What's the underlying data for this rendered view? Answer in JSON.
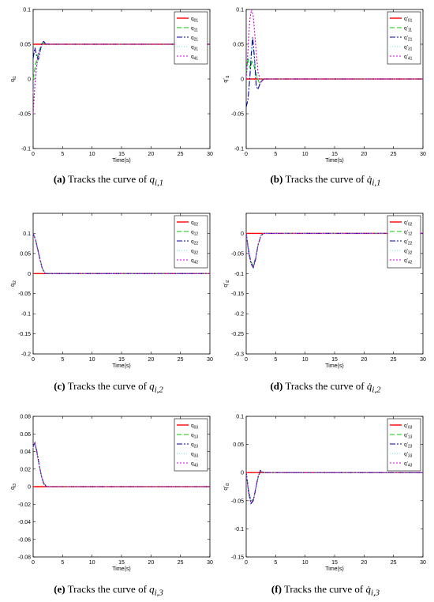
{
  "figure": {
    "captions": [
      {
        "tag": "(a)",
        "text": "Tracks the curve of",
        "var": "q",
        "sub": "i,1"
      },
      {
        "tag": "(b)",
        "text": "Tracks the curve of",
        "var": "q̇",
        "sub": "i,1"
      },
      {
        "tag": "(c)",
        "text": "Tracks the curve of",
        "var": "q",
        "sub": "i,2"
      },
      {
        "tag": "(d)",
        "text": "Tracks the curve of",
        "var": "q̇",
        "sub": "i,2"
      },
      {
        "tag": "(e)",
        "text": "Tracks the curve of",
        "var": "q",
        "sub": "i,3"
      },
      {
        "tag": "(f)",
        "text": "Tracks the curve of",
        "var": "q̇",
        "sub": "i,3"
      }
    ]
  },
  "styles": {
    "colors": [
      "#ff0000",
      "#00cc00",
      "#0000a0",
      "#66e0e0",
      "#cc00cc"
    ],
    "dashes": [
      "",
      "6,3",
      "7,2,2,2",
      "1,2",
      "2,2"
    ]
  },
  "chart_data": [
    {
      "type": "line",
      "ylabel": "q",
      "ylabel_sub": "i1",
      "xlabel": "Time(s)",
      "xlim": [
        0,
        30
      ],
      "ylim": [
        -0.1,
        0.1
      ],
      "xticks": [
        0,
        5,
        10,
        15,
        20,
        25,
        30
      ],
      "yticks": [
        -0.1,
        -0.05,
        0,
        0.05,
        0.1
      ],
      "ytick_labels": [
        "-0.1",
        "-0.05",
        "0",
        "0.05",
        "0.1"
      ],
      "legend_position": "top-right",
      "series": [
        {
          "name": "q",
          "name_sub": "01",
          "x": [
            0,
            30
          ],
          "y": [
            0.05,
            0.05
          ]
        },
        {
          "name": "q",
          "name_sub": "11",
          "x": [
            0,
            0.4,
            0.8,
            1.2,
            1.6,
            2,
            3,
            30
          ],
          "y": [
            0.0,
            0.02,
            0.035,
            0.045,
            0.052,
            0.05,
            0.05,
            0.05
          ]
        },
        {
          "name": "q",
          "name_sub": "21",
          "x": [
            0,
            0.3,
            0.6,
            0.9,
            1.2,
            1.5,
            1.8,
            2.2,
            3,
            30
          ],
          "y": [
            0.03,
            0.045,
            0.033,
            0.028,
            0.04,
            0.052,
            0.054,
            0.05,
            0.05,
            0.05
          ]
        },
        {
          "name": "q",
          "name_sub": "31",
          "x": [
            0,
            0.5,
            1,
            1.5,
            2,
            3,
            30
          ],
          "y": [
            -0.02,
            0.01,
            0.035,
            0.048,
            0.051,
            0.05,
            0.05
          ]
        },
        {
          "name": "q",
          "name_sub": "41",
          "x": [
            0,
            0.3,
            0.6,
            1,
            1.5,
            2,
            3,
            30
          ],
          "y": [
            -0.05,
            -0.01,
            0.02,
            0.04,
            0.05,
            0.051,
            0.05,
            0.05
          ]
        }
      ]
    },
    {
      "type": "line",
      "ylabel": "q'",
      "ylabel_sub": "i1",
      "xlabel": "Time(s)",
      "xlim": [
        0,
        30
      ],
      "ylim": [
        -0.1,
        0.1
      ],
      "xticks": [
        0,
        5,
        10,
        15,
        20,
        25,
        30
      ],
      "yticks": [
        -0.1,
        -0.05,
        0,
        0.05,
        0.1
      ],
      "ytick_labels": [
        "-0.1",
        "-0.05",
        "0",
        "0.05",
        "0.1"
      ],
      "legend_position": "top-right",
      "series": [
        {
          "name": "q'",
          "name_sub": "01",
          "x": [
            0,
            1.4,
            1.4,
            30
          ],
          "y": [
            0,
            0,
            0,
            0
          ]
        },
        {
          "name": "q'",
          "name_sub": "11",
          "x": [
            0,
            0.3,
            0.7,
            1.0,
            1.3,
            1.7,
            2.2,
            3,
            30
          ],
          "y": [
            0.01,
            0.03,
            0.015,
            0.025,
            0.02,
            0.005,
            -0.005,
            0,
            0
          ]
        },
        {
          "name": "q'",
          "name_sub": "21",
          "x": [
            0,
            0.3,
            0.6,
            0.9,
            1.1,
            1.4,
            1.7,
            2.0,
            2.4,
            3,
            30
          ],
          "y": [
            -0.04,
            -0.03,
            0.0,
            0.04,
            0.06,
            0.03,
            -0.01,
            -0.015,
            -0.005,
            0,
            0
          ]
        },
        {
          "name": "q'",
          "name_sub": "31",
          "x": [
            0,
            0.5,
            1.0,
            1.5,
            2.0,
            3,
            30
          ],
          "y": [
            0.0,
            0.03,
            0.045,
            0.02,
            0.0,
            0,
            0
          ]
        },
        {
          "name": "q'",
          "name_sub": "41",
          "x": [
            0,
            0.3,
            0.6,
            0.9,
            1.2,
            1.6,
            2.0,
            2.5,
            3,
            30
          ],
          "y": [
            0.0,
            0.04,
            0.085,
            0.1,
            0.09,
            0.05,
            0.01,
            -0.005,
            0,
            0
          ]
        }
      ]
    },
    {
      "type": "line",
      "ylabel": "q",
      "ylabel_sub": "i2",
      "xlabel": "Time(s)",
      "xlim": [
        0,
        30
      ],
      "ylim": [
        -0.2,
        0.15
      ],
      "xticks": [
        0,
        5,
        10,
        15,
        20,
        25,
        30
      ],
      "yticks": [
        -0.2,
        -0.15,
        -0.1,
        -0.05,
        0,
        0.05,
        0.1
      ],
      "ytick_labels": [
        "-0.2",
        "-0.15",
        "-0.1",
        "-0.05",
        "0",
        "0.05",
        "0.1"
      ],
      "legend_position": "top-right",
      "series": [
        {
          "name": "q",
          "name_sub": "02",
          "x": [
            0,
            30
          ],
          "y": [
            0,
            0
          ]
        },
        {
          "name": "q",
          "name_sub": "12",
          "x": [
            0,
            0.4,
            0.8,
            1.2,
            1.6,
            2.0,
            2.5,
            30
          ],
          "y": [
            0.1,
            0.085,
            0.06,
            0.035,
            0.012,
            0.002,
            0,
            0
          ]
        },
        {
          "name": "q",
          "name_sub": "22",
          "x": [
            0,
            0.4,
            0.8,
            1.2,
            1.6,
            2.0,
            2.5,
            30
          ],
          "y": [
            0.1,
            0.085,
            0.058,
            0.032,
            0.01,
            0.001,
            0,
            0
          ]
        },
        {
          "name": "q",
          "name_sub": "32",
          "x": [
            0,
            0.4,
            0.8,
            1.2,
            1.6,
            2.0,
            2.5,
            30
          ],
          "y": [
            0.1,
            0.086,
            0.06,
            0.034,
            0.011,
            0.002,
            0,
            0
          ]
        },
        {
          "name": "q",
          "name_sub": "42",
          "x": [
            0,
            0.4,
            0.8,
            1.2,
            1.6,
            2.0,
            2.5,
            30
          ],
          "y": [
            0.1,
            0.084,
            0.059,
            0.033,
            0.011,
            0.001,
            0,
            0
          ]
        }
      ]
    },
    {
      "type": "line",
      "ylabel": "q'",
      "ylabel_sub": "i2",
      "xlabel": "Time(s)",
      "xlim": [
        0,
        30
      ],
      "ylim": [
        -0.3,
        0.05
      ],
      "xticks": [
        0,
        5,
        10,
        15,
        20,
        25,
        30
      ],
      "yticks": [
        -0.3,
        -0.25,
        -0.2,
        -0.15,
        -0.1,
        -0.05,
        0
      ],
      "ytick_labels": [
        "-0.3",
        "-0.25",
        "-0.2",
        "-0.15",
        "-0.1",
        "-0.05",
        "0"
      ],
      "legend_position": "top-right",
      "series": [
        {
          "name": "q'",
          "name_sub": "02",
          "x": [
            0,
            2.0,
            2.0,
            30
          ],
          "y": [
            0,
            0,
            0,
            0
          ]
        },
        {
          "name": "q'",
          "name_sub": "12",
          "x": [
            0,
            0.4,
            0.8,
            1.2,
            1.6,
            2.0,
            2.5,
            3,
            30
          ],
          "y": [
            0,
            -0.04,
            -0.07,
            -0.08,
            -0.06,
            -0.03,
            -0.005,
            0,
            0
          ]
        },
        {
          "name": "q'",
          "name_sub": "22",
          "x": [
            0,
            0.4,
            0.8,
            1.2,
            1.6,
            2.0,
            2.5,
            3,
            30
          ],
          "y": [
            0,
            -0.045,
            -0.075,
            -0.085,
            -0.065,
            -0.03,
            -0.005,
            0,
            0
          ]
        },
        {
          "name": "q'",
          "name_sub": "32",
          "x": [
            0,
            0.4,
            0.8,
            1.2,
            1.6,
            2.0,
            2.5,
            3,
            30
          ],
          "y": [
            0,
            -0.04,
            -0.072,
            -0.082,
            -0.062,
            -0.028,
            -0.004,
            0,
            0
          ]
        },
        {
          "name": "q'",
          "name_sub": "42",
          "x": [
            0,
            0.4,
            0.8,
            1.2,
            1.6,
            2.0,
            2.5,
            3,
            30
          ],
          "y": [
            0,
            -0.042,
            -0.073,
            -0.083,
            -0.063,
            -0.029,
            -0.005,
            0,
            0
          ]
        }
      ]
    },
    {
      "type": "line",
      "ylabel": "q",
      "ylabel_sub": "i3",
      "xlabel": "Time(s)",
      "xlim": [
        0,
        30
      ],
      "ylim": [
        -0.08,
        0.08
      ],
      "xticks": [
        0,
        5,
        10,
        15,
        20,
        25,
        30
      ],
      "yticks": [
        -0.08,
        -0.06,
        -0.04,
        -0.02,
        0,
        0.02,
        0.04,
        0.06,
        0.08
      ],
      "ytick_labels": [
        "-0.08",
        "-0.06",
        "-0.04",
        "-0.02",
        "0",
        "0.02",
        "0.04",
        "0.06",
        "0.08"
      ],
      "legend_position": "top-right",
      "series": [
        {
          "name": "q",
          "name_sub": "03",
          "x": [
            0,
            30
          ],
          "y": [
            0,
            0
          ]
        },
        {
          "name": "q",
          "name_sub": "13",
          "x": [
            0,
            0.3,
            0.6,
            1.0,
            1.4,
            1.8,
            2.3,
            3,
            30
          ],
          "y": [
            0.045,
            0.05,
            0.04,
            0.025,
            0.012,
            0.004,
            0.0,
            0,
            0
          ]
        },
        {
          "name": "q",
          "name_sub": "23",
          "x": [
            0,
            0.3,
            0.6,
            1.0,
            1.4,
            1.8,
            2.3,
            3,
            30
          ],
          "y": [
            0.046,
            0.05,
            0.041,
            0.026,
            0.012,
            0.003,
            0.0,
            0,
            0
          ]
        },
        {
          "name": "q",
          "name_sub": "33",
          "x": [
            0,
            0.3,
            0.6,
            1.0,
            1.4,
            1.8,
            2.3,
            3,
            30
          ],
          "y": [
            0.044,
            0.049,
            0.04,
            0.025,
            0.011,
            0.003,
            0.0,
            0,
            0
          ]
        },
        {
          "name": "q",
          "name_sub": "43",
          "x": [
            0,
            0.3,
            0.6,
            1.0,
            1.4,
            1.8,
            2.3,
            3,
            30
          ],
          "y": [
            0.045,
            0.05,
            0.04,
            0.025,
            0.012,
            0.004,
            0.0,
            0,
            0
          ]
        }
      ]
    },
    {
      "type": "line",
      "ylabel": "q'",
      "ylabel_sub": "i3",
      "xlabel": "Time(s)",
      "xlim": [
        0,
        30
      ],
      "ylim": [
        -0.15,
        0.1
      ],
      "xticks": [
        0,
        5,
        10,
        15,
        20,
        25,
        30
      ],
      "yticks": [
        -0.15,
        -0.1,
        -0.05,
        0,
        0.05,
        0.1
      ],
      "ytick_labels": [
        "-0.15",
        "-0.1",
        "-0.05",
        "0",
        "0.05",
        "0.1"
      ],
      "legend_position": "top-right",
      "series": [
        {
          "name": "q'",
          "name_sub": "03",
          "x": [
            0,
            2.0,
            2.0,
            30
          ],
          "y": [
            0,
            0,
            0,
            0
          ]
        },
        {
          "name": "q'",
          "name_sub": "13",
          "x": [
            0,
            0.4,
            0.8,
            1.2,
            1.6,
            2.0,
            2.4,
            3,
            30
          ],
          "y": [
            0,
            -0.03,
            -0.05,
            -0.048,
            -0.03,
            -0.01,
            0.002,
            0,
            0
          ]
        },
        {
          "name": "q'",
          "name_sub": "23",
          "x": [
            0,
            0.4,
            0.8,
            1.2,
            1.6,
            2.0,
            2.4,
            3,
            30
          ],
          "y": [
            0,
            -0.035,
            -0.055,
            -0.05,
            -0.03,
            -0.008,
            0.004,
            0,
            0
          ]
        },
        {
          "name": "q'",
          "name_sub": "33",
          "x": [
            0,
            0.4,
            0.8,
            1.2,
            1.6,
            2.0,
            2.4,
            3,
            30
          ],
          "y": [
            0,
            -0.032,
            -0.052,
            -0.047,
            -0.028,
            -0.008,
            0.003,
            0,
            0
          ]
        },
        {
          "name": "q'",
          "name_sub": "43",
          "x": [
            0,
            0.4,
            0.8,
            1.2,
            1.6,
            2.0,
            2.4,
            3,
            30
          ],
          "y": [
            0,
            -0.033,
            -0.053,
            -0.049,
            -0.029,
            -0.009,
            0.003,
            0,
            0
          ]
        }
      ]
    }
  ]
}
